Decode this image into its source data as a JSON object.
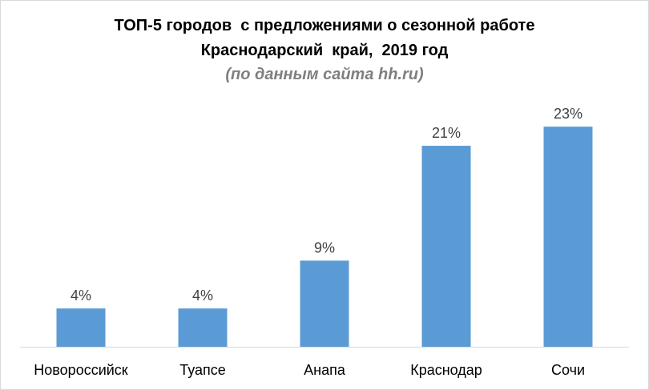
{
  "chart_data": {
    "type": "bar",
    "title": [
      "ТОП-5 городов  с предложениями о сезонной работе",
      "Краснодарский  край,  2019 год"
    ],
    "subtitle": "(по данным сайта hh.ru)",
    "categories": [
      "Новороссийск",
      "Туапсе",
      "Анапа",
      "Краснодар",
      "Сочи"
    ],
    "values": [
      4,
      4,
      9,
      21,
      23
    ],
    "data_labels": [
      "4%",
      "4%",
      "9%",
      "21%",
      "23%"
    ],
    "unit": "%",
    "xlabel": "",
    "ylabel": "",
    "ylim": [
      0,
      25
    ],
    "grid": false,
    "legend": "none",
    "bar_color": "#5b9bd5",
    "axis_color": "#d9d9d9"
  }
}
